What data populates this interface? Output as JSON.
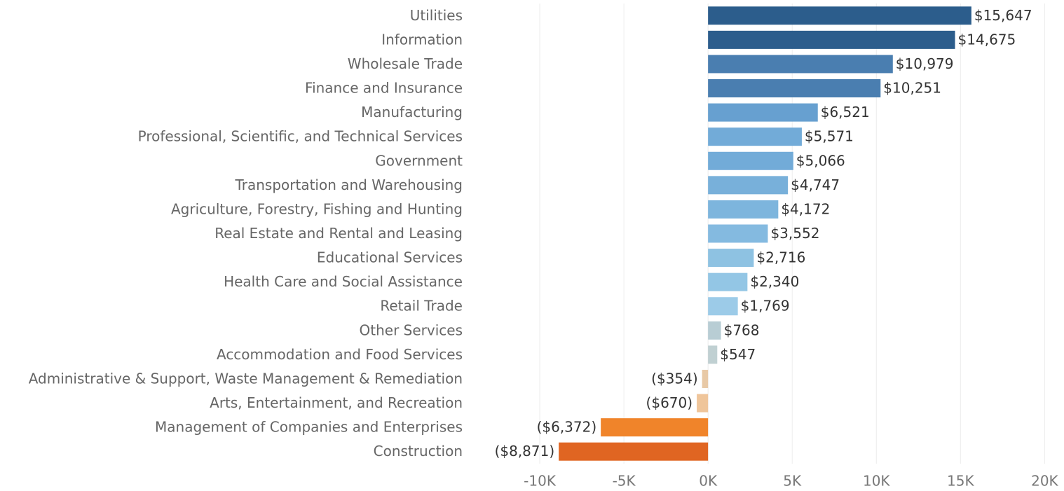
{
  "chart_data": {
    "type": "bar",
    "orientation": "horizontal",
    "categories": [
      "Utilities",
      "Information",
      "Wholesale Trade",
      "Finance and Insurance",
      "Manufacturing",
      "Professional, Scientific, and Technical Services",
      "Government",
      "Transportation and Warehousing",
      "Agriculture, Forestry, Fishing and Hunting",
      "Real Estate and Rental and Leasing",
      "Educational Services",
      "Health Care and Social Assistance",
      "Retail Trade",
      "Other Services",
      "Accommodation and Food Services",
      "Administrative & Support, Waste Management & Remediation",
      "Arts, Entertainment, and Recreation",
      "Management of Companies and Enterprises",
      "Construction"
    ],
    "values": [
      15647,
      14675,
      10979,
      10251,
      6521,
      5571,
      5066,
      4747,
      4172,
      3552,
      2716,
      2340,
      1769,
      768,
      547,
      -354,
      -670,
      -6372,
      -8871
    ],
    "value_labels": [
      "$15,647",
      "$14,675",
      "$10,979",
      "$10,251",
      "$6,521",
      "$5,571",
      "$5,066",
      "$4,747",
      "$4,172",
      "$3,552",
      "$2,716",
      "$2,340",
      "$1,769",
      "$768",
      "$547",
      "($354)",
      "($670)",
      "($6,372)",
      "($8,871)"
    ],
    "colors": [
      "#2c5d8c",
      "#2c5d8c",
      "#4a7eb0",
      "#4a7eb0",
      "#67a0d0",
      "#72abd8",
      "#72abd8",
      "#78b0da",
      "#7db5dd",
      "#84bae0",
      "#8ec2e2",
      "#93c6e5",
      "#9ccbe8",
      "#b8cdd4",
      "#c0d0d2",
      "#e8c9a6",
      "#efc59a",
      "#f0842a",
      "#e06522"
    ],
    "xlim": [
      -14250,
      20400
    ],
    "xticks": [
      {
        "value": -10000,
        "label": "-10K"
      },
      {
        "value": -5000,
        "label": "-5K"
      },
      {
        "value": 0,
        "label": "0K"
      },
      {
        "value": 5000,
        "label": "5K"
      },
      {
        "value": 10000,
        "label": "10K"
      },
      {
        "value": 15000,
        "label": "15K"
      },
      {
        "value": 20000,
        "label": "20K"
      }
    ],
    "grid": true
  }
}
